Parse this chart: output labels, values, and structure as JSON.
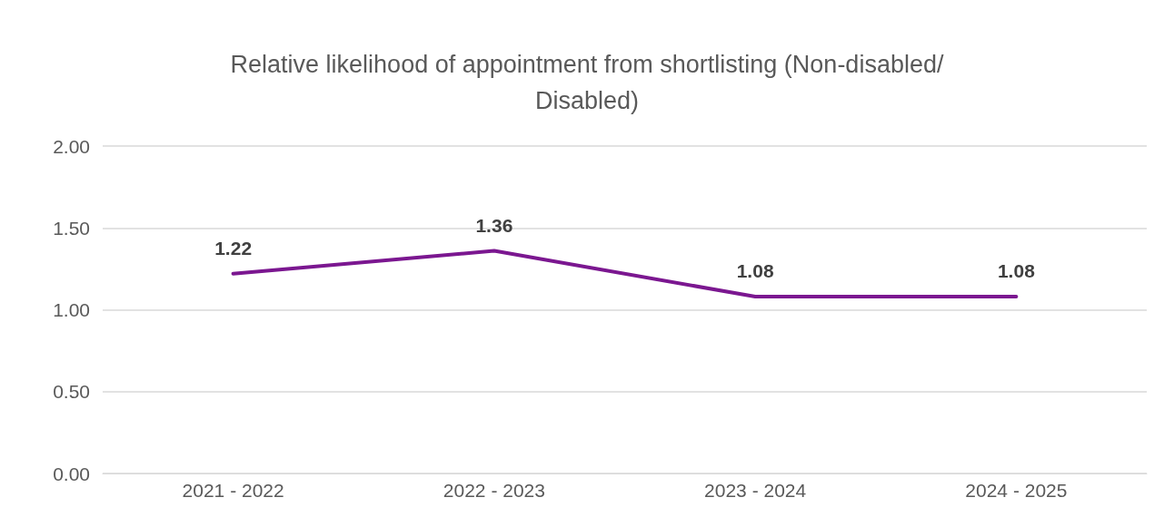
{
  "chart_data": {
    "type": "line",
    "title": "Relative likelihood of appointment from shortlisting (Non-disabled/Disabled)",
    "categories": [
      "2021 - 2022",
      "2022 - 2023",
      "2023 - 2024",
      "2024 - 2025"
    ],
    "series": [
      {
        "color": "#7b1790",
        "values": [
          1.22,
          1.36,
          1.08,
          1.08
        ]
      }
    ],
    "ylim": [
      0,
      2
    ],
    "yticks": [
      {
        "value": 0,
        "label": "0.00"
      },
      {
        "value": 0.5,
        "label": "0.50"
      },
      {
        "value": 1,
        "label": "1.00"
      },
      {
        "value": 1.5,
        "label": "1.50"
      },
      {
        "value": 2,
        "label": "2.00"
      }
    ],
    "grid": "y",
    "marker": "none",
    "line_style": "solid",
    "data_labels": true
  }
}
